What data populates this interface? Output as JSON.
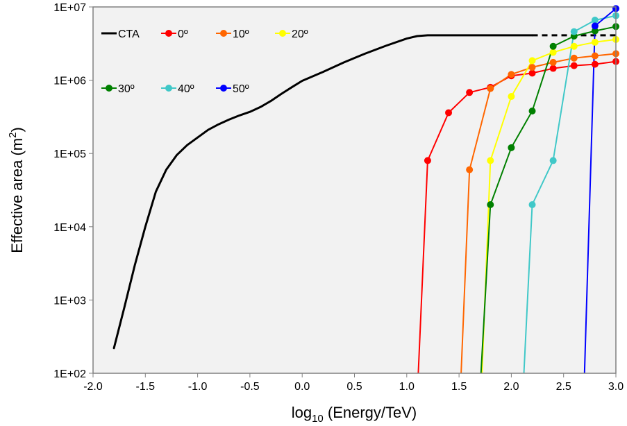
{
  "chart_data": {
    "type": "line",
    "xlabel": {
      "main": "log",
      "sub": "10",
      "rest": " (Energy/TeV)"
    },
    "ylabel": {
      "main": "Effective area (m",
      "sup": "2",
      "rest": ")"
    },
    "xlim": [
      -2.0,
      3.0
    ],
    "ylim": [
      100,
      10000000
    ],
    "yscale": "log",
    "grid": false,
    "legend_position": "top-left",
    "x_ticks": [
      "-2.0",
      "-1.5",
      "-1.0",
      "-0.5",
      "0.0",
      "0.5",
      "1.0",
      "1.5",
      "2.0",
      "2.5",
      "3.0"
    ],
    "y_ticks": [
      "1E+02",
      "1E+03",
      "1E+04",
      "1E+05",
      "1E+06",
      "1E+07"
    ],
    "cta_curve": {
      "name": "CTA",
      "color": "#000000",
      "x": [
        -1.8,
        -1.7,
        -1.6,
        -1.5,
        -1.4,
        -1.3,
        -1.2,
        -1.1,
        -1.0,
        -0.9,
        -0.8,
        -0.7,
        -0.6,
        -0.5,
        -0.4,
        -0.3,
        -0.2,
        -0.1,
        0.0,
        0.2,
        0.4,
        0.6,
        0.8,
        1.0,
        1.1,
        1.2,
        1.4,
        1.6,
        1.8,
        2.0,
        2.2
      ],
      "y": [
        220,
        800,
        3000,
        10000,
        30000,
        60000,
        95000,
        130000,
        165000,
        210000,
        250000,
        290000,
        330000,
        370000,
        430000,
        520000,
        650000,
        800000,
        980000,
        1300000,
        1750000,
        2300000,
        2950000,
        3700000,
        4000000,
        4100000,
        4100000,
        4100000,
        4100000,
        4100000,
        4100000
      ],
      "extension": {
        "x": [
          2.2,
          3.0
        ],
        "y": [
          4100000,
          4100000
        ],
        "style": "dashed"
      }
    },
    "series": [
      {
        "name": "0º",
        "color": "#ff0000",
        "start": {
          "x": 1.11,
          "y": 100
        },
        "x": [
          1.2,
          1.4,
          1.6,
          1.8,
          2.0,
          2.2,
          2.4,
          2.6,
          2.8,
          3.0
        ],
        "y": [
          80000,
          360000,
          680000,
          800000,
          1150000,
          1250000,
          1450000,
          1580000,
          1650000,
          1800000
        ]
      },
      {
        "name": "10º",
        "color": "#ff6600",
        "start": {
          "x": 1.52,
          "y": 100
        },
        "x": [
          1.6,
          1.8,
          2.0,
          2.2,
          2.4,
          2.6,
          2.8,
          3.0
        ],
        "y": [
          60000,
          770000,
          1200000,
          1500000,
          1750000,
          2000000,
          2150000,
          2300000
        ]
      },
      {
        "name": "20º",
        "color": "#ffff00",
        "start": {
          "x": 1.72,
          "y": 100
        },
        "x": [
          1.8,
          2.0,
          2.2,
          2.4,
          2.6,
          2.8,
          3.0
        ],
        "y": [
          80000,
          600000,
          1850000,
          2400000,
          2900000,
          3300000,
          3600000
        ]
      },
      {
        "name": "30º",
        "color": "#008000",
        "start": {
          "x": 1.71,
          "y": 100
        },
        "x": [
          1.8,
          2.0,
          2.2,
          2.4,
          2.6,
          2.8,
          3.0
        ],
        "y": [
          20000,
          120000,
          380000,
          2900000,
          4000000,
          4700000,
          5400000
        ]
      },
      {
        "name": "40º",
        "color": "#40c8c8",
        "start": {
          "x": 2.12,
          "y": 100
        },
        "x": [
          2.2,
          2.4,
          2.6,
          2.8,
          3.0
        ],
        "y": [
          20000,
          80000,
          4600000,
          6600000,
          7600000
        ]
      },
      {
        "name": "50º",
        "color": "#0000ff",
        "start": {
          "x": 2.7,
          "y": 100
        },
        "x": [
          2.8,
          3.0
        ],
        "y": [
          5500000,
          9500000
        ]
      }
    ],
    "legend_rows": [
      [
        "CTA",
        "0º",
        "10º",
        "20º"
      ],
      [
        "30º",
        "40º",
        "50º"
      ]
    ]
  }
}
